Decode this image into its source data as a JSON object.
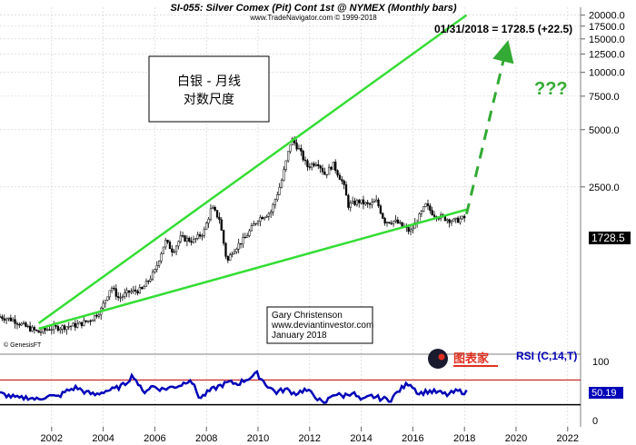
{
  "chart_data": {
    "type": "candlestick",
    "header": {
      "title": "SI-055:  Silver Comex (Pit) Cont 1st @ NYMEX  (Monthly bars)",
      "subtitle": "www.TradeNavigator.com © 1999-2018",
      "last_quote": "01/31/2018 = 1728.5 (+22.5)",
      "last_price_tag": "1728.5"
    },
    "annotation_box": {
      "line1": "白银 - 月线",
      "line2": "对数尺度"
    },
    "author_box": {
      "line1": "Gary Christenson",
      "line2": "www.deviantinvestor.com",
      "line3": "January 2018"
    },
    "question_marks": "???",
    "watermark": "© GenesisFT",
    "logo_text": "图表家",
    "x_axis": {
      "ticks": [
        "2002",
        "2004",
        "2006",
        "2008",
        "2010",
        "2012",
        "2014",
        "2016",
        "2018",
        "2020",
        "2022"
      ],
      "range": [
        2000.0,
        2022.5
      ]
    },
    "y_axis": {
      "scale": "log",
      "range": [
        330,
        22000
      ],
      "ticks": [
        "20000.0",
        "17500.0",
        "15000.0",
        "12500.0",
        "10000.0",
        "7500.0",
        "5000.0",
        "2500.0",
        "100"
      ]
    },
    "price_series": {
      "name": "Silver monthly close (cents)",
      "x": [
        2000.0,
        2000.5,
        2001.0,
        2001.5,
        2001.9,
        2002.5,
        2003.0,
        2003.5,
        2003.9,
        2004.3,
        2004.6,
        2005.0,
        2005.5,
        2006.0,
        2006.4,
        2006.7,
        2007.0,
        2007.5,
        2007.9,
        2008.2,
        2008.5,
        2008.8,
        2009.0,
        2009.5,
        2010.0,
        2010.5,
        2010.9,
        2011.3,
        2011.6,
        2011.9,
        2012.3,
        2012.6,
        2012.9,
        2013.3,
        2013.5,
        2013.9,
        2014.3,
        2014.6,
        2014.9,
        2015.3,
        2015.6,
        2015.9,
        2016.2,
        2016.5,
        2016.8,
        2017.0,
        2017.3,
        2017.6,
        2017.9,
        2018.08
      ],
      "close": [
        520,
        500,
        460,
        430,
        450,
        460,
        470,
        500,
        560,
        750,
        650,
        700,
        720,
        900,
        1300,
        1150,
        1350,
        1300,
        1450,
        1950,
        1700,
        1000,
        1150,
        1350,
        1700,
        1850,
        2650,
        4500,
        3900,
        3200,
        3400,
        2900,
        3300,
        2600,
        2000,
        2100,
        2000,
        2100,
        1650,
        1650,
        1550,
        1450,
        1700,
        2000,
        1800,
        1750,
        1700,
        1650,
        1700,
        1728.5
      ]
    },
    "trendlines": [
      {
        "name": "upper",
        "x1": 2001.5,
        "y1": 480,
        "x2": 2018.08,
        "y2": 20000
      },
      {
        "name": "lower",
        "x1": 2001.5,
        "y1": 450,
        "x2": 2018.08,
        "y2": 1900
      }
    ],
    "projection": {
      "x1": 2018.08,
      "y1": 1800,
      "x2": 2019.6,
      "y2": 13000
    },
    "rsi": {
      "label": "RSI (C,14,T)",
      "last_value": "50.19",
      "tick_labels": [
        "100",
        "0"
      ],
      "upper_level": 70,
      "lower_level": 30,
      "values": [
        48,
        44,
        40,
        42,
        38,
        45,
        42,
        52,
        58,
        50,
        46,
        52,
        55,
        62,
        78,
        50,
        60,
        55,
        58,
        62,
        72,
        40,
        52,
        60,
        66,
        64,
        72,
        80,
        62,
        50,
        55,
        48,
        54,
        46,
        30,
        48,
        44,
        50,
        36,
        44,
        40,
        38,
        54,
        66,
        48,
        52,
        50,
        46,
        52,
        50.19
      ]
    },
    "colors": {
      "price_bars": "#000000",
      "trendlines": "#33dd33",
      "projection": "#33aa33",
      "question_marks": "#33aa33",
      "rsi_line": "#0000b8",
      "rsi_upper": "#c00000",
      "rsi_lower": "#000000",
      "price_tag_bg": "#000000",
      "logo_red": "#e03020"
    }
  }
}
